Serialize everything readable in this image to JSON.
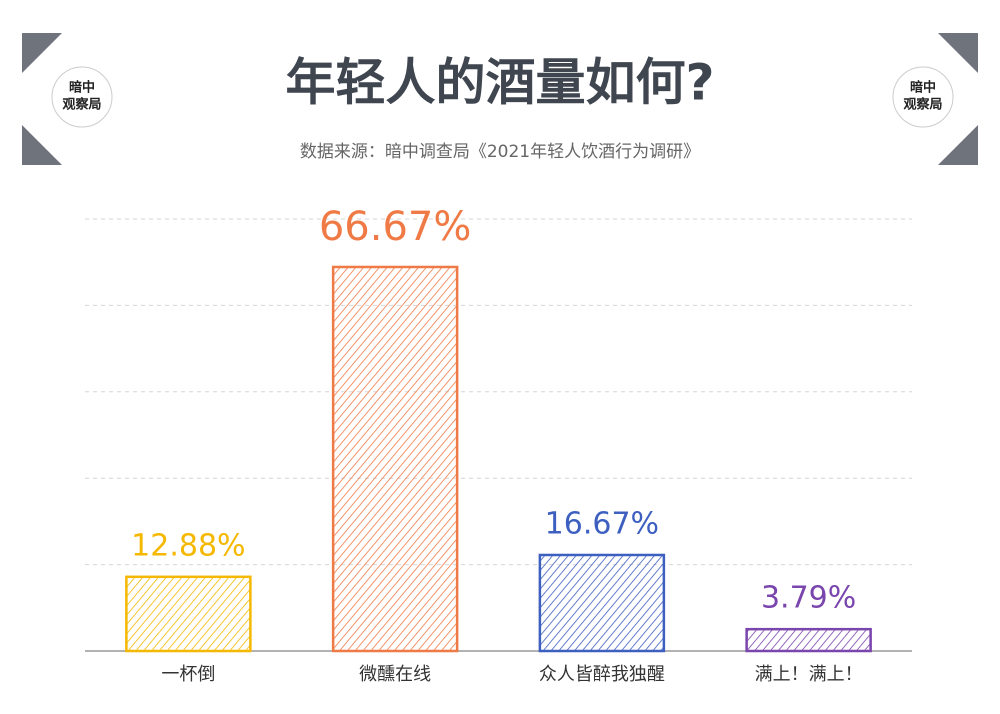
{
  "logo": [
    "暗中",
    "观察局"
  ],
  "chart_data": {
    "type": "bar",
    "title": "年轻人的酒量如何?",
    "subtitle": "数据来源：暗中调查局《2021年轻人饮酒行为调研》",
    "categories": [
      "一杯倒",
      "微醺在线",
      "众人皆醉我独醒",
      "满上！满上！"
    ],
    "values": [
      12.88,
      66.67,
      16.67,
      3.79
    ],
    "value_labels": [
      "12.88%",
      "66.67%",
      "16.67%",
      "3.79%"
    ],
    "colors": [
      "#f5b800",
      "#f07a45",
      "#3d5fc0",
      "#7a45ad"
    ],
    "ylim": [
      0,
      75
    ],
    "yticks": [
      0,
      15,
      30,
      45,
      60,
      75
    ],
    "grid": true
  }
}
